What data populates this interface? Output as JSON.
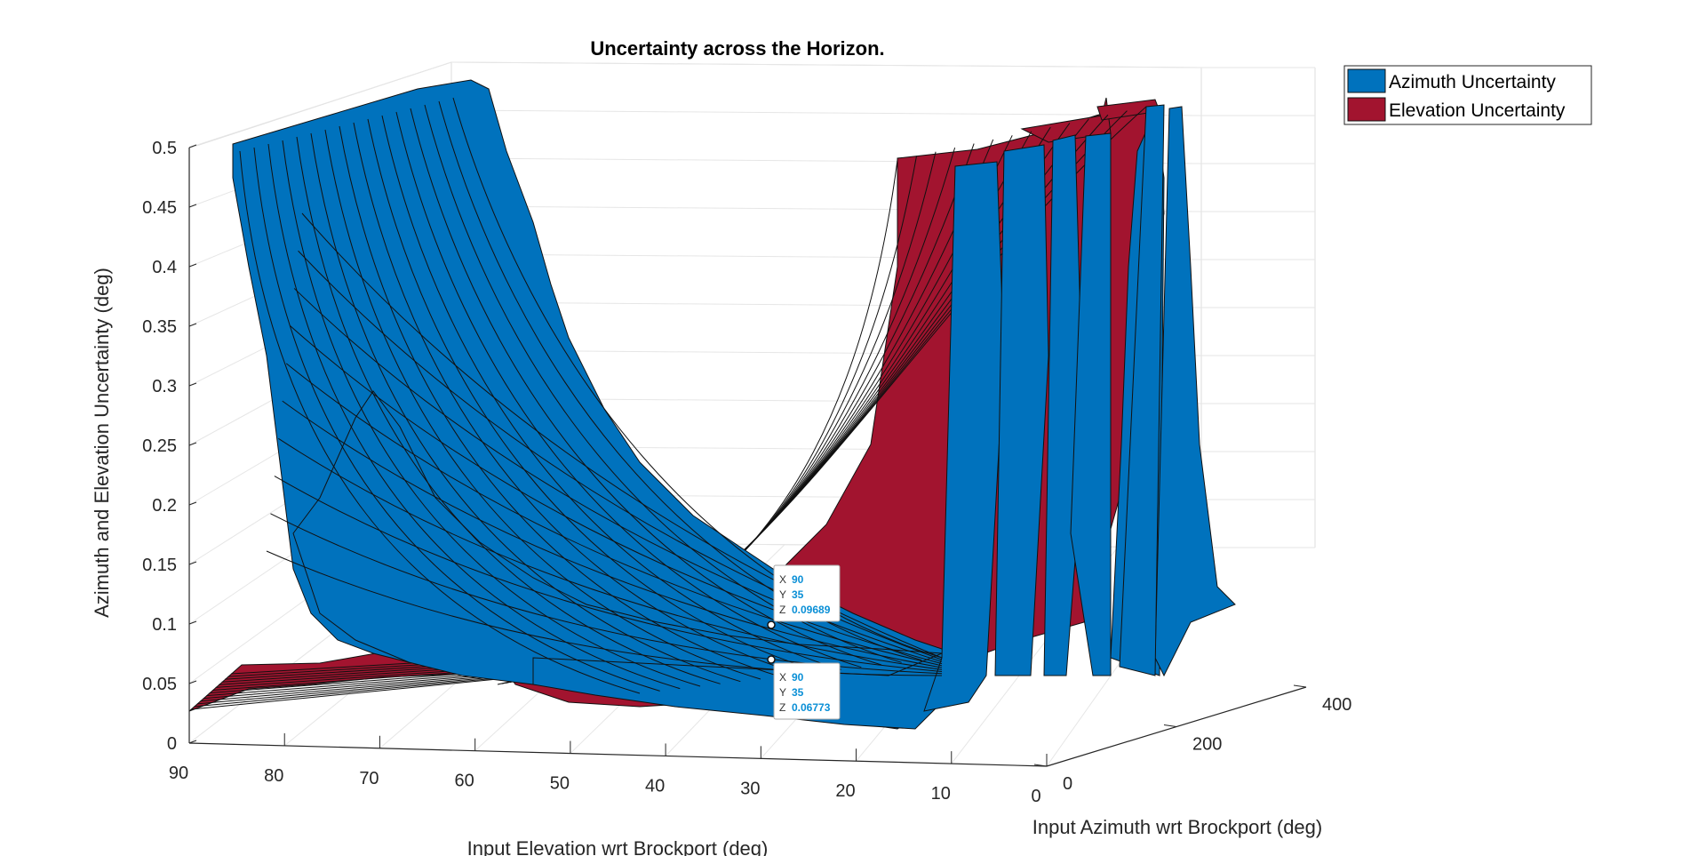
{
  "chart_data": {
    "type": "surface",
    "title": "Uncertainty across the Horizon.",
    "xlabel": "Input Elevation wrt Brockport (deg)",
    "ylabel": "Input Azimuth wrt Brockport (deg)",
    "zlabel": "Azimuth and Elevation Uncertainty (deg)",
    "xlim": [
      0,
      90
    ],
    "ylim": [
      0,
      400
    ],
    "zlim": [
      0,
      0.5
    ],
    "x_ticks": [
      "90",
      "80",
      "70",
      "60",
      "50",
      "40",
      "30",
      "20",
      "10",
      "0"
    ],
    "y_ticks": [
      "0",
      "200",
      "400"
    ],
    "z_ticks": [
      "0",
      "0.05",
      "0.1",
      "0.15",
      "0.2",
      "0.25",
      "0.3",
      "0.35",
      "0.4",
      "0.45",
      "0.5"
    ],
    "grid": true,
    "legend_position": "top-right",
    "series": [
      {
        "name": "Azimuth Uncertainty",
        "color": "#0072BD"
      },
      {
        "name": "Elevation Uncertainty",
        "color": "#A2142F"
      }
    ],
    "datatips": [
      {
        "x_key": "X",
        "x": "90",
        "y_key": "Y",
        "y": "35",
        "z_key": "Z",
        "z": "0.09689"
      },
      {
        "x_key": "X",
        "x": "90",
        "y_key": "Y",
        "y": "35",
        "z_key": "Z",
        "z": "0.06773"
      }
    ]
  }
}
